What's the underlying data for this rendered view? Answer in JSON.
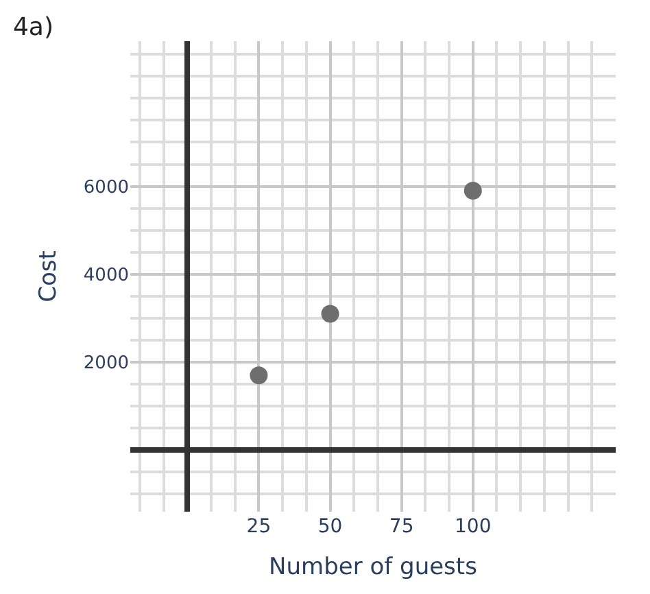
{
  "chart_data": {
    "type": "scatter",
    "title": "4a)",
    "xlabel": "Number of guests",
    "ylabel": "Cost",
    "x": [
      25,
      50,
      100
    ],
    "series": [
      {
        "color": "#6e6e6e",
        "values": [
          1700,
          3100,
          5900
        ]
      }
    ],
    "xlim": [
      -20,
      150
    ],
    "ylim": [
      -1400,
      9300
    ],
    "xticks": [
      25,
      50,
      75,
      100
    ],
    "yticks": [
      2000,
      4000,
      6000
    ],
    "grid": true,
    "marker": "circle",
    "legend": false
  }
}
